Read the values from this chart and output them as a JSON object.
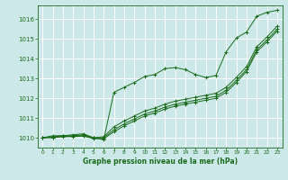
{
  "title": "Graphe pression niveau de la mer (hPa)",
  "bg_color": "#cce8e8",
  "grid_color": "#aadddd",
  "line_color": "#1a6b1a",
  "xlim": [
    -0.5,
    23.5
  ],
  "ylim": [
    1009.5,
    1016.7
  ],
  "xticks": [
    0,
    1,
    2,
    3,
    4,
    5,
    6,
    7,
    8,
    9,
    10,
    11,
    12,
    13,
    14,
    15,
    16,
    17,
    18,
    19,
    20,
    21,
    22,
    23
  ],
  "yticks": [
    1010,
    1011,
    1012,
    1013,
    1014,
    1015,
    1016
  ],
  "series": [
    [
      1010.0,
      1010.1,
      1010.1,
      1010.15,
      1010.2,
      1010.0,
      1009.9,
      1012.3,
      1012.55,
      1012.8,
      1013.1,
      1013.2,
      1013.5,
      1013.55,
      1013.45,
      1013.2,
      1013.05,
      1013.15,
      1014.35,
      1015.05,
      1015.35,
      1016.15,
      1016.35,
      1016.45
    ],
    [
      1010.0,
      1010.05,
      1010.1,
      1010.1,
      1010.15,
      1010.0,
      1010.05,
      1010.55,
      1010.85,
      1011.1,
      1011.35,
      1011.5,
      1011.7,
      1011.85,
      1011.95,
      1012.05,
      1012.15,
      1012.25,
      1012.55,
      1013.05,
      1013.6,
      1014.6,
      1015.1,
      1015.65
    ],
    [
      1010.0,
      1010.02,
      1010.07,
      1010.08,
      1010.1,
      1009.98,
      1010.0,
      1010.4,
      1010.7,
      1010.95,
      1011.2,
      1011.35,
      1011.55,
      1011.7,
      1011.8,
      1011.9,
      1012.0,
      1012.1,
      1012.4,
      1012.9,
      1013.45,
      1014.45,
      1014.95,
      1015.5
    ],
    [
      1010.0,
      1010.0,
      1010.05,
      1010.06,
      1010.08,
      1009.96,
      1009.95,
      1010.3,
      1010.6,
      1010.85,
      1011.1,
      1011.25,
      1011.45,
      1011.6,
      1011.7,
      1011.8,
      1011.9,
      1012.0,
      1012.3,
      1012.8,
      1013.35,
      1014.35,
      1014.85,
      1015.4
    ]
  ]
}
